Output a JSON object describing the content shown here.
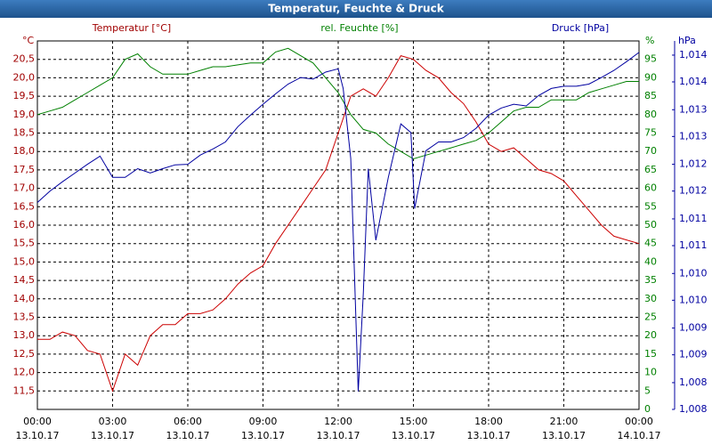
{
  "chart_data": {
    "type": "line",
    "title": "Temperatur, Feuchte & Druck",
    "xlim": [
      0,
      24
    ],
    "xticks": [
      {
        "value": 0,
        "label": "00:00"
      },
      {
        "value": 3,
        "label": "03:00"
      },
      {
        "value": 6,
        "label": "06:00"
      },
      {
        "value": 9,
        "label": "09:00"
      },
      {
        "value": 12,
        "label": "12:00"
      },
      {
        "value": 15,
        "label": "15:00"
      },
      {
        "value": 18,
        "label": "18:00"
      },
      {
        "value": 21,
        "label": "21:00"
      },
      {
        "value": 24,
        "label": "00:00"
      }
    ],
    "xtick_dates": [
      "13.10.17",
      "13.10.17",
      "13.10.17",
      "13.10.17",
      "13.10.17",
      "13.10.17",
      "13.10.17",
      "13.10.17",
      "14.10.17"
    ],
    "x": [
      0,
      0.5,
      1,
      1.5,
      2,
      2.5,
      3,
      3.5,
      4,
      4.5,
      5,
      5.5,
      6,
      6.5,
      7,
      7.5,
      8,
      8.5,
      9,
      9.5,
      10,
      10.5,
      11,
      11.5,
      12,
      12.5,
      13,
      13.5,
      14,
      14.5,
      15,
      15.5,
      16,
      16.5,
      17,
      17.5,
      18,
      18.5,
      19,
      19.5,
      20,
      20.5,
      21,
      21.5,
      22,
      22.5,
      23,
      23.5,
      24
    ],
    "series": [
      {
        "name": "Temperatur [°C]",
        "color": "#cc0000",
        "axis": "y",
        "values": [
          12.9,
          12.9,
          13.1,
          13.0,
          12.6,
          12.5,
          11.5,
          12.5,
          12.2,
          13.0,
          13.3,
          13.3,
          13.6,
          13.6,
          13.7,
          14.0,
          14.4,
          14.7,
          14.9,
          15.5,
          16.0,
          16.5,
          17.0,
          17.5,
          18.5,
          19.5,
          19.7,
          19.5,
          20.0,
          20.6,
          20.5,
          20.2,
          20.0,
          19.6,
          19.3,
          18.8,
          18.2,
          18.0,
          18.1,
          17.8,
          17.5,
          17.4,
          17.2,
          16.8,
          16.4,
          16.0,
          15.7,
          15.6,
          15.5
        ]
      },
      {
        "name": "rel. Feuchte [%]",
        "color": "#008000",
        "axis": "y2",
        "values": [
          80,
          81,
          82,
          84,
          86,
          88,
          90,
          95,
          96.5,
          93,
          91,
          91,
          91,
          92,
          93,
          93,
          93.5,
          94,
          94,
          97,
          98,
          96,
          94,
          90,
          86,
          80,
          76,
          75,
          72,
          70,
          68,
          69,
          70,
          71,
          72,
          73,
          75,
          78,
          81,
          82,
          82,
          84,
          84,
          84,
          86,
          87,
          88,
          89,
          89
        ]
      },
      {
        "name": "Druck [hPa]",
        "color": "#0000a0",
        "axis": "y3",
        "x": [
          0,
          0.5,
          1,
          1.5,
          2,
          2.5,
          3,
          3.5,
          4,
          4.5,
          5,
          5.5,
          6,
          6.5,
          7,
          7.5,
          8,
          8.5,
          9,
          9.5,
          10,
          10.5,
          11,
          11.5,
          12,
          12.2,
          12.5,
          12.8,
          13.0,
          13.2,
          13.5,
          14,
          14.5,
          14.9,
          15.05,
          15.5,
          16,
          16.5,
          17,
          17.5,
          18,
          18.5,
          19,
          19.5,
          20,
          20.5,
          21,
          21.5,
          22,
          22.5,
          23,
          23.5,
          24
        ],
        "values": [
          1.01179,
          1.012,
          1.01217,
          1.01233,
          1.01249,
          1.01264,
          1.01225,
          1.01225,
          1.01241,
          1.01233,
          1.01241,
          1.01248,
          1.01249,
          1.01266,
          1.01277,
          1.0129,
          1.01318,
          1.01339,
          1.01359,
          1.01378,
          1.01396,
          1.01408,
          1.01405,
          1.01418,
          1.01424,
          1.01388,
          1.0126,
          1.00833,
          1.01012,
          1.01241,
          1.0111,
          1.01225,
          1.01323,
          1.01307,
          1.01168,
          1.01274,
          1.0129,
          1.0129,
          1.01298,
          1.01315,
          1.01339,
          1.01352,
          1.01359,
          1.01356,
          1.01375,
          1.01388,
          1.01392,
          1.01392,
          1.01396,
          1.01408,
          1.01421,
          1.01437,
          1.01454
        ]
      }
    ],
    "y_unit": "°C",
    "y2_unit": "%",
    "y3_unit": "hPa",
    "ylim": [
      11,
      21
    ],
    "yticks": [
      {
        "value": 11.5,
        "label": "11,5"
      },
      {
        "value": 12,
        "label": "12,0"
      },
      {
        "value": 12.5,
        "label": "12,5"
      },
      {
        "value": 13,
        "label": "13,0"
      },
      {
        "value": 13.5,
        "label": "13,5"
      },
      {
        "value": 14,
        "label": "14,0"
      },
      {
        "value": 14.5,
        "label": "14,5"
      },
      {
        "value": 15,
        "label": "15,0"
      },
      {
        "value": 15.5,
        "label": "15,5"
      },
      {
        "value": 16,
        "label": "16,0"
      },
      {
        "value": 16.5,
        "label": "16,5"
      },
      {
        "value": 17,
        "label": "17,0"
      },
      {
        "value": 17.5,
        "label": "17,5"
      },
      {
        "value": 18,
        "label": "18,0"
      },
      {
        "value": 18.5,
        "label": "18,5"
      },
      {
        "value": 19,
        "label": "19,0"
      },
      {
        "value": 19.5,
        "label": "19,5"
      },
      {
        "value": 20,
        "label": "20,0"
      },
      {
        "value": 20.5,
        "label": "20,5"
      }
    ],
    "y2lim": [
      0,
      100
    ],
    "y2ticks": [
      0,
      5,
      10,
      15,
      20,
      25,
      30,
      35,
      40,
      45,
      50,
      55,
      60,
      65,
      70,
      75,
      80,
      85,
      90,
      95
    ],
    "y3lim": [
      1.008,
      1.01475
    ],
    "y3ticks": [
      {
        "value": 1.008,
        "label": "1,008"
      },
      {
        "value": 1.00849,
        "label": "1,008"
      },
      {
        "value": 1.009,
        "label": "1,009"
      },
      {
        "value": 1.00949,
        "label": "1,009"
      },
      {
        "value": 1.01,
        "label": "1,010"
      },
      {
        "value": 1.01049,
        "label": "1,010"
      },
      {
        "value": 1.011,
        "label": "1,011"
      },
      {
        "value": 1.01149,
        "label": "1,011"
      },
      {
        "value": 1.012,
        "label": "1,012"
      },
      {
        "value": 1.01249,
        "label": "1,012"
      },
      {
        "value": 1.013,
        "label": "1,013"
      },
      {
        "value": 1.01349,
        "label": "1,013"
      },
      {
        "value": 1.014,
        "label": "1,014"
      },
      {
        "value": 1.01449,
        "label": "1,014"
      }
    ],
    "grid": true
  }
}
